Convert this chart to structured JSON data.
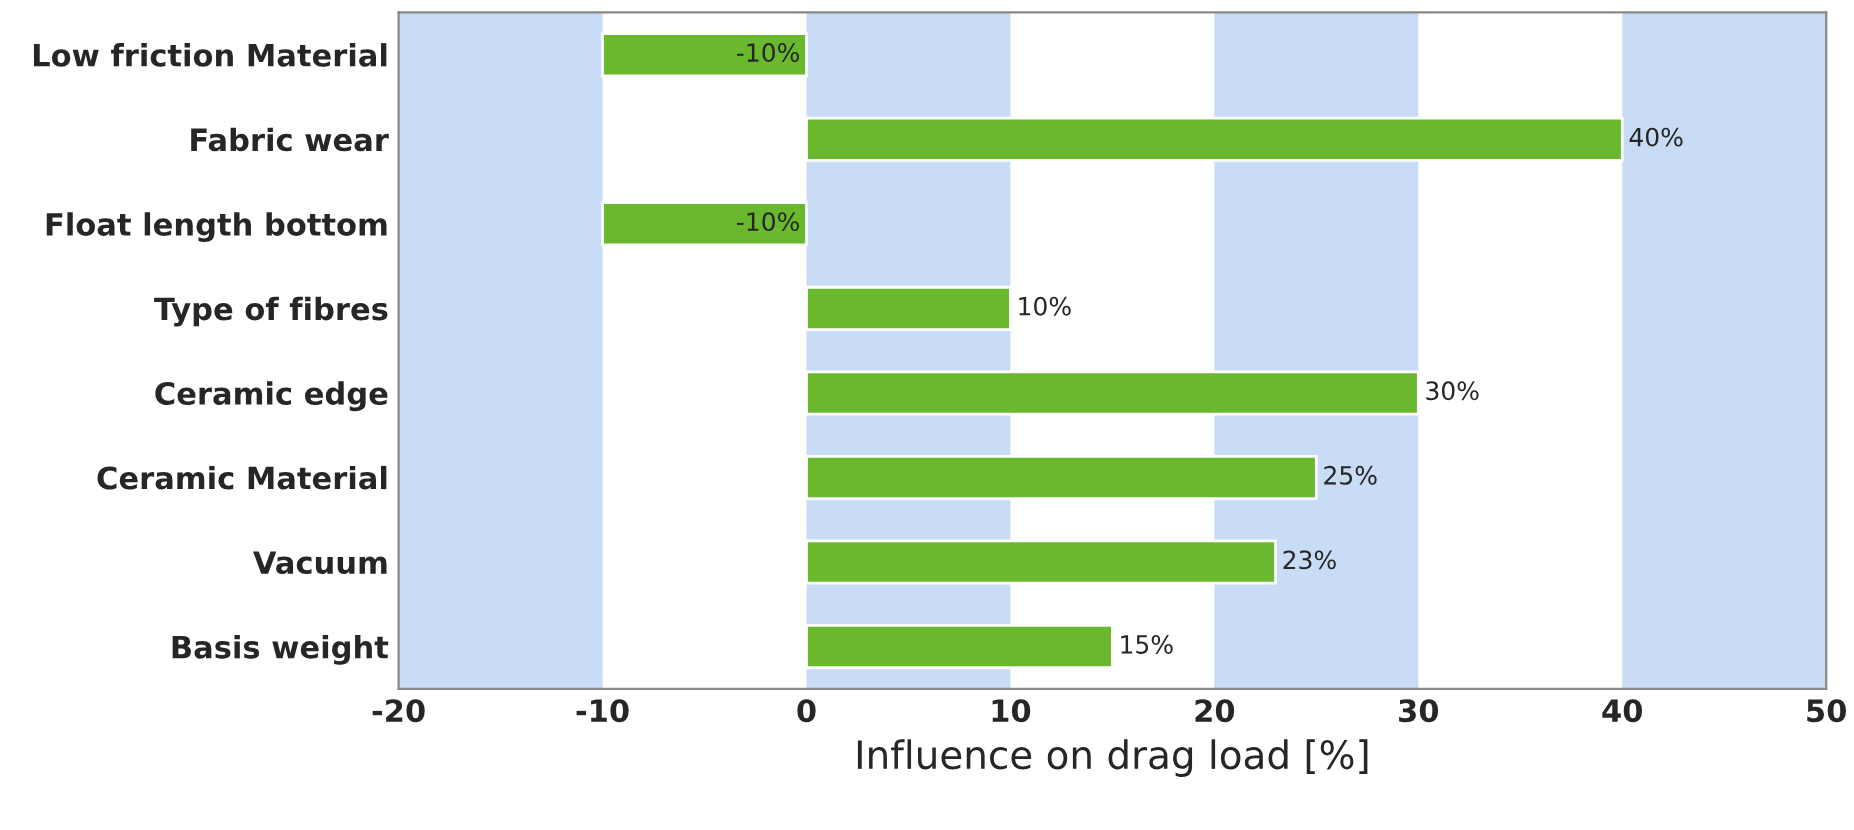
{
  "chart_data": {
    "type": "bar",
    "orientation": "horizontal",
    "xlabel": "Influence on drag load [%]",
    "categories": [
      "Low friction Material",
      "Fabric wear",
      "Float length bottom",
      "Type of fibres",
      "Ceramic edge",
      "Ceramic Material",
      "Vacuum",
      "Basis weight"
    ],
    "values": [
      -10,
      40,
      -10,
      10,
      30,
      25,
      23,
      15
    ],
    "value_labels": [
      "-10%",
      "40%",
      "-10%",
      "10%",
      "30%",
      "25%",
      "23%",
      "15%"
    ],
    "color": "#6ab82e",
    "xlim": [
      -20,
      50
    ],
    "xticks": [
      -20,
      -10,
      0,
      10,
      20,
      30,
      40,
      50
    ],
    "grid": false,
    "bands": [
      {
        "axis": "x",
        "from": -20,
        "to": -10,
        "color": "#c9dcf5"
      },
      {
        "axis": "x",
        "from": 0,
        "to": 10,
        "color": "#c9dcf5"
      },
      {
        "axis": "x",
        "from": 20,
        "to": 30,
        "color": "#c9dcf5"
      },
      {
        "axis": "x",
        "from": 40,
        "to": 50,
        "color": "#c9dcf5"
      }
    ]
  }
}
